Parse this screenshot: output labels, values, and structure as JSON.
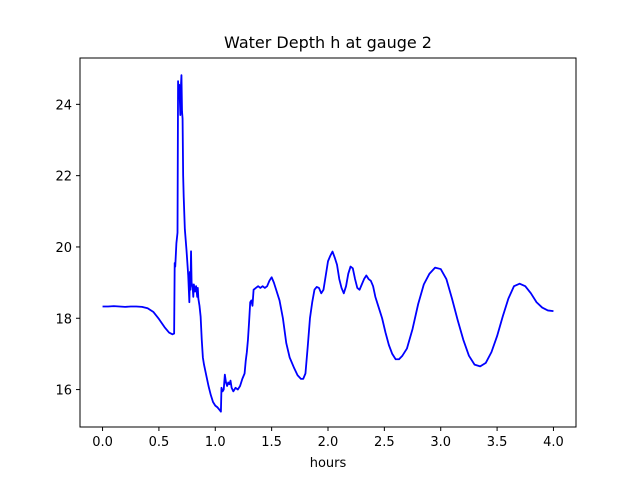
{
  "chart_data": {
    "type": "line",
    "title": "Water Depth h at gauge 2",
    "xlabel": "hours",
    "ylabel": "",
    "xlim": [
      -0.2,
      4.2
    ],
    "ylim": [
      14.95,
      25.3
    ],
    "x_ticks": [
      0.0,
      0.5,
      1.0,
      1.5,
      2.0,
      2.5,
      3.0,
      3.5,
      4.0
    ],
    "x_tick_labels": [
      "0.0",
      "0.5",
      "1.0",
      "1.5",
      "2.0",
      "2.5",
      "3.0",
      "3.5",
      "4.0"
    ],
    "y_ticks": [
      16,
      18,
      20,
      22,
      24
    ],
    "y_tick_labels": [
      "16",
      "18",
      "20",
      "22",
      "24"
    ],
    "grid": false,
    "series": [
      {
        "color": "#0000ff",
        "points": [
          [
            0.0,
            18.33
          ],
          [
            0.05,
            18.33
          ],
          [
            0.1,
            18.34
          ],
          [
            0.15,
            18.33
          ],
          [
            0.2,
            18.32
          ],
          [
            0.25,
            18.33
          ],
          [
            0.3,
            18.33
          ],
          [
            0.35,
            18.32
          ],
          [
            0.4,
            18.28
          ],
          [
            0.45,
            18.18
          ],
          [
            0.5,
            17.98
          ],
          [
            0.55,
            17.75
          ],
          [
            0.59,
            17.6
          ],
          [
            0.62,
            17.55
          ],
          [
            0.635,
            17.57
          ],
          [
            0.64,
            19.55
          ],
          [
            0.645,
            19.45
          ],
          [
            0.655,
            20.1
          ],
          [
            0.665,
            20.4
          ],
          [
            0.67,
            24.65
          ],
          [
            0.675,
            24.25
          ],
          [
            0.68,
            24.55
          ],
          [
            0.685,
            24.2
          ],
          [
            0.69,
            23.7
          ],
          [
            0.695,
            24.5
          ],
          [
            0.7,
            24.82
          ],
          [
            0.705,
            23.8
          ],
          [
            0.71,
            23.6
          ],
          [
            0.715,
            22.0
          ],
          [
            0.72,
            21.4
          ],
          [
            0.73,
            20.5
          ],
          [
            0.745,
            19.9
          ],
          [
            0.76,
            19.2
          ],
          [
            0.77,
            18.45
          ],
          [
            0.775,
            19.3
          ],
          [
            0.78,
            18.8
          ],
          [
            0.785,
            19.88
          ],
          [
            0.79,
            19.0
          ],
          [
            0.8,
            18.85
          ],
          [
            0.805,
            18.6
          ],
          [
            0.81,
            18.95
          ],
          [
            0.82,
            18.75
          ],
          [
            0.83,
            18.9
          ],
          [
            0.84,
            18.6
          ],
          [
            0.845,
            18.85
          ],
          [
            0.85,
            18.55
          ],
          [
            0.86,
            18.35
          ],
          [
            0.87,
            18.05
          ],
          [
            0.88,
            17.4
          ],
          [
            0.89,
            16.9
          ],
          [
            0.9,
            16.7
          ],
          [
            0.92,
            16.4
          ],
          [
            0.94,
            16.1
          ],
          [
            0.96,
            15.85
          ],
          [
            0.98,
            15.65
          ],
          [
            1.0,
            15.55
          ],
          [
            1.02,
            15.5
          ],
          [
            1.04,
            15.42
          ],
          [
            1.05,
            15.38
          ],
          [
            1.055,
            16.05
          ],
          [
            1.065,
            15.95
          ],
          [
            1.075,
            16.0
          ],
          [
            1.085,
            16.42
          ],
          [
            1.095,
            16.2
          ],
          [
            1.105,
            16.1
          ],
          [
            1.115,
            16.2
          ],
          [
            1.125,
            16.15
          ],
          [
            1.135,
            16.25
          ],
          [
            1.145,
            16.05
          ],
          [
            1.16,
            15.95
          ],
          [
            1.18,
            16.05
          ],
          [
            1.2,
            16.0
          ],
          [
            1.22,
            16.1
          ],
          [
            1.24,
            16.3
          ],
          [
            1.26,
            16.45
          ],
          [
            1.27,
            16.8
          ],
          [
            1.28,
            17.05
          ],
          [
            1.29,
            17.4
          ],
          [
            1.3,
            17.9
          ],
          [
            1.31,
            18.45
          ],
          [
            1.32,
            18.5
          ],
          [
            1.33,
            18.35
          ],
          [
            1.34,
            18.8
          ],
          [
            1.36,
            18.85
          ],
          [
            1.38,
            18.9
          ],
          [
            1.4,
            18.85
          ],
          [
            1.42,
            18.9
          ],
          [
            1.44,
            18.85
          ],
          [
            1.46,
            18.9
          ],
          [
            1.48,
            19.05
          ],
          [
            1.5,
            19.15
          ],
          [
            1.52,
            19.0
          ],
          [
            1.54,
            18.8
          ],
          [
            1.57,
            18.5
          ],
          [
            1.6,
            18.0
          ],
          [
            1.63,
            17.3
          ],
          [
            1.66,
            16.9
          ],
          [
            1.7,
            16.6
          ],
          [
            1.73,
            16.4
          ],
          [
            1.76,
            16.3
          ],
          [
            1.78,
            16.3
          ],
          [
            1.8,
            16.45
          ],
          [
            1.82,
            17.2
          ],
          [
            1.84,
            18.0
          ],
          [
            1.86,
            18.45
          ],
          [
            1.88,
            18.8
          ],
          [
            1.9,
            18.88
          ],
          [
            1.92,
            18.85
          ],
          [
            1.94,
            18.7
          ],
          [
            1.96,
            18.8
          ],
          [
            1.98,
            19.2
          ],
          [
            2.0,
            19.6
          ],
          [
            2.02,
            19.75
          ],
          [
            2.04,
            19.87
          ],
          [
            2.06,
            19.7
          ],
          [
            2.08,
            19.5
          ],
          [
            2.1,
            19.1
          ],
          [
            2.12,
            18.85
          ],
          [
            2.14,
            18.7
          ],
          [
            2.16,
            18.9
          ],
          [
            2.18,
            19.25
          ],
          [
            2.2,
            19.45
          ],
          [
            2.22,
            19.4
          ],
          [
            2.24,
            19.1
          ],
          [
            2.26,
            18.85
          ],
          [
            2.28,
            18.8
          ],
          [
            2.3,
            18.95
          ],
          [
            2.32,
            19.1
          ],
          [
            2.34,
            19.2
          ],
          [
            2.36,
            19.1
          ],
          [
            2.38,
            19.05
          ],
          [
            2.4,
            18.9
          ],
          [
            2.42,
            18.6
          ],
          [
            2.45,
            18.3
          ],
          [
            2.48,
            18.0
          ],
          [
            2.51,
            17.6
          ],
          [
            2.54,
            17.25
          ],
          [
            2.57,
            17.0
          ],
          [
            2.6,
            16.85
          ],
          [
            2.63,
            16.85
          ],
          [
            2.66,
            16.95
          ],
          [
            2.7,
            17.15
          ],
          [
            2.75,
            17.7
          ],
          [
            2.8,
            18.4
          ],
          [
            2.85,
            18.95
          ],
          [
            2.9,
            19.25
          ],
          [
            2.95,
            19.42
          ],
          [
            3.0,
            19.38
          ],
          [
            3.05,
            19.1
          ],
          [
            3.1,
            18.55
          ],
          [
            3.15,
            17.95
          ],
          [
            3.2,
            17.4
          ],
          [
            3.25,
            16.95
          ],
          [
            3.3,
            16.7
          ],
          [
            3.35,
            16.65
          ],
          [
            3.4,
            16.75
          ],
          [
            3.45,
            17.05
          ],
          [
            3.5,
            17.5
          ],
          [
            3.55,
            18.05
          ],
          [
            3.6,
            18.55
          ],
          [
            3.65,
            18.9
          ],
          [
            3.7,
            18.97
          ],
          [
            3.75,
            18.9
          ],
          [
            3.8,
            18.7
          ],
          [
            3.85,
            18.45
          ],
          [
            3.9,
            18.3
          ],
          [
            3.95,
            18.22
          ],
          [
            4.0,
            18.2
          ]
        ]
      }
    ]
  }
}
